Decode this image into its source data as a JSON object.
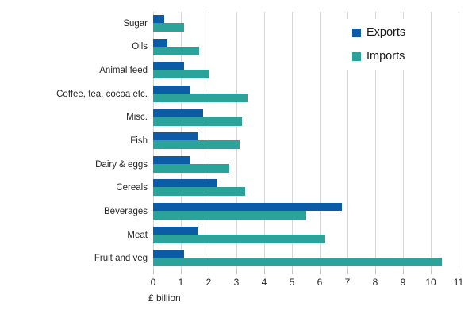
{
  "chart_data": {
    "type": "bar",
    "orientation": "horizontal",
    "title": "",
    "xlabel": "£ billion",
    "ylabel": "",
    "xlim": [
      0,
      11
    ],
    "xticks": [
      0,
      1,
      2,
      3,
      4,
      5,
      6,
      7,
      8,
      9,
      10,
      11
    ],
    "grid": true,
    "legend_position": "top-right",
    "categories": [
      "Sugar",
      "Oils",
      "Animal feed",
      "Coffee, tea, cocoa etc.",
      "Misc.",
      "Fish",
      "Dairy & eggs",
      "Cereals",
      "Beverages",
      "Meat",
      "Fruit and veg"
    ],
    "series": [
      {
        "name": "Exports",
        "color": "#0b5ba7",
        "values": [
          0.4,
          0.5,
          1.1,
          1.35,
          1.8,
          1.6,
          1.35,
          2.3,
          6.8,
          1.6,
          1.1
        ]
      },
      {
        "name": "Imports",
        "color": "#2ca39a",
        "values": [
          1.1,
          1.65,
          2.0,
          3.4,
          3.2,
          3.1,
          2.75,
          3.3,
          5.5,
          6.2,
          10.4
        ]
      }
    ],
    "colors": {
      "gridline": "#d6d6d6",
      "tick": "#bfbfbf",
      "text": "#262626"
    }
  }
}
